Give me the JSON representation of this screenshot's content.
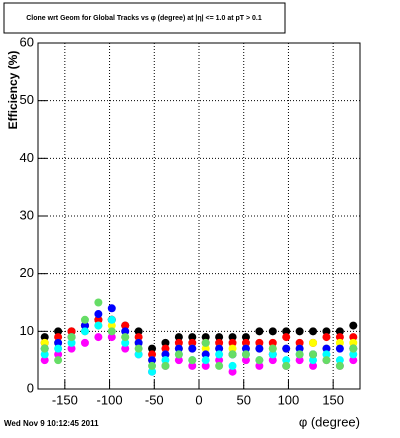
{
  "chart_data": {
    "type": "scatter",
    "title": "Clone wrt Geom for Global Tracks vs φ (degree) at |η| <= 1.0 at pT > 0.1",
    "x_label": "φ (degree)",
    "y_label": "Efficiency (%)",
    "footer": "Wed Nov  9 10:12:45 2011",
    "x": [
      -172.5,
      -157.5,
      -142.5,
      -127.5,
      -112.5,
      -97.5,
      -82.5,
      -67.5,
      -52.5,
      -37.5,
      -22.5,
      -7.5,
      7.5,
      22.5,
      37.5,
      52.5,
      67.5,
      82.5,
      97.5,
      112.5,
      127.5,
      142.5,
      157.5,
      172.5
    ],
    "series": [
      {
        "name": "black",
        "color": "#000000",
        "values": [
          9,
          10,
          10,
          11,
          12,
          12,
          11,
          10,
          7,
          8,
          9,
          9,
          9,
          9,
          9,
          9,
          10,
          10,
          10,
          10,
          10,
          10,
          10,
          11
        ]
      },
      {
        "name": "red",
        "color": "#ff0000",
        "values": [
          8,
          9,
          10,
          11,
          12,
          12,
          11,
          9,
          6,
          7,
          8,
          8,
          8,
          8,
          8,
          8,
          8,
          8,
          9,
          8,
          8,
          9,
          9,
          9
        ]
      },
      {
        "name": "yellow",
        "color": "#ffff00",
        "values": [
          8,
          8,
          9,
          10,
          11,
          11,
          9,
          8,
          5,
          6,
          7,
          7,
          7,
          7,
          7,
          7,
          7,
          7,
          7,
          7,
          8,
          7,
          8,
          8
        ]
      },
      {
        "name": "blue",
        "color": "#0000ff",
        "values": [
          7,
          8,
          9,
          11,
          13,
          14,
          10,
          8,
          5,
          6,
          7,
          7,
          6,
          7,
          6,
          7,
          7,
          6,
          7,
          7,
          6,
          7,
          7,
          7
        ]
      },
      {
        "name": "magenta",
        "color": "#ff00ff",
        "values": [
          5,
          6,
          7,
          8,
          9,
          9,
          7,
          6,
          3,
          4,
          5,
          4,
          4,
          5,
          3,
          5,
          4,
          5,
          4,
          5,
          4,
          5,
          4,
          5
        ]
      },
      {
        "name": "cyan",
        "color": "#00ffff",
        "values": [
          6,
          7,
          8,
          10,
          11,
          12,
          8,
          6,
          3,
          5,
          6,
          5,
          5,
          6,
          4,
          6,
          5,
          6,
          5,
          6,
          5,
          6,
          5,
          6
        ]
      },
      {
        "name": "light-green",
        "color": "#66dd66",
        "values": [
          7,
          5,
          9,
          12,
          15,
          10,
          9,
          7,
          4,
          4,
          6,
          5,
          8,
          4,
          6,
          6,
          5,
          7,
          4,
          6,
          6,
          5,
          4,
          7
        ]
      }
    ],
    "xlim": [
      -180,
      180
    ],
    "ylim": [
      0,
      60
    ],
    "xticks": [
      -150,
      -100,
      -50,
      0,
      50,
      100,
      150
    ],
    "yticks": [
      0,
      10,
      20,
      30,
      40,
      50,
      60
    ],
    "grid": true
  }
}
